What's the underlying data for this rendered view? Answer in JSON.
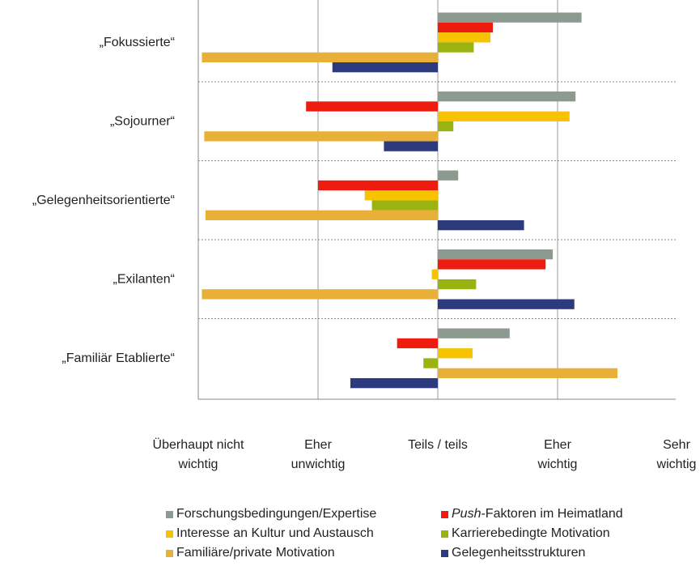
{
  "chart_data": {
    "type": "bar",
    "orientation": "horizontal",
    "categories": [
      "„Fokussierte“",
      "„Sojourner“",
      "„Gelegenheitsorientierte“",
      "„Exilanten“",
      "„Familiär Etablierte“"
    ],
    "x_ticks": [
      "Überhaupt nicht wichtig",
      "Eher unwichtig",
      "Teils/teils",
      "Eher wichtig",
      "Sehr wichtig"
    ],
    "x_tick_lines": [
      [
        "Überhaupt nicht",
        "wichtig"
      ],
      [
        "Eher",
        "unwichtig"
      ],
      [
        "Teils / teils"
      ],
      [
        "Eher",
        "wichtig"
      ],
      [
        "Sehr",
        "wichtig"
      ]
    ],
    "xlim": [
      1,
      5
    ],
    "baseline": 3,
    "grid": "vertical",
    "legend_position": "bottom",
    "series": [
      {
        "name": "Forschungsbedingungen/Expertise",
        "color": "#8c9a8f",
        "values": [
          4.2,
          4.15,
          3.17,
          3.96,
          3.6
        ]
      },
      {
        "name": "Push-Faktoren im Heimatland",
        "color": "#ee1c0e",
        "values": [
          3.46,
          1.9,
          2.0,
          3.9,
          2.66
        ]
      },
      {
        "name": "Interesse an Kultur und Austausch",
        "color": "#f7c300",
        "values": [
          3.44,
          4.1,
          2.39,
          2.95,
          3.29
        ]
      },
      {
        "name": "Karrierebedingte Motivation",
        "color": "#9ab212",
        "values": [
          3.3,
          3.13,
          2.45,
          3.32,
          2.88
        ]
      },
      {
        "name": "Familiäre/private Motivation",
        "color": "#e8b038",
        "values": [
          1.03,
          1.05,
          1.06,
          1.03,
          4.5
        ]
      },
      {
        "name": "Gelegenheitsstrukturen",
        "color": "#2d3a7e",
        "values": [
          2.12,
          2.55,
          3.72,
          4.14,
          2.27
        ]
      }
    ]
  },
  "legend": [
    {
      "label": "Forschungsbedingungen/Expertise",
      "color": "#8c9a8f"
    },
    {
      "label": "Push-Faktoren im Heimatland",
      "italic_prefix": "Push",
      "rest": "-Faktoren im Heimatland",
      "color": "#ee1c0e"
    },
    {
      "label": "Interesse an Kultur und Austausch",
      "color": "#f7c300"
    },
    {
      "label": "Karrierebedingte Motivation",
      "color": "#9ab212"
    },
    {
      "label": "Familiäre/private Motivation",
      "color": "#e8b038"
    },
    {
      "label": "Gelegenheitsstrukturen",
      "color": "#2d3a7e"
    }
  ]
}
